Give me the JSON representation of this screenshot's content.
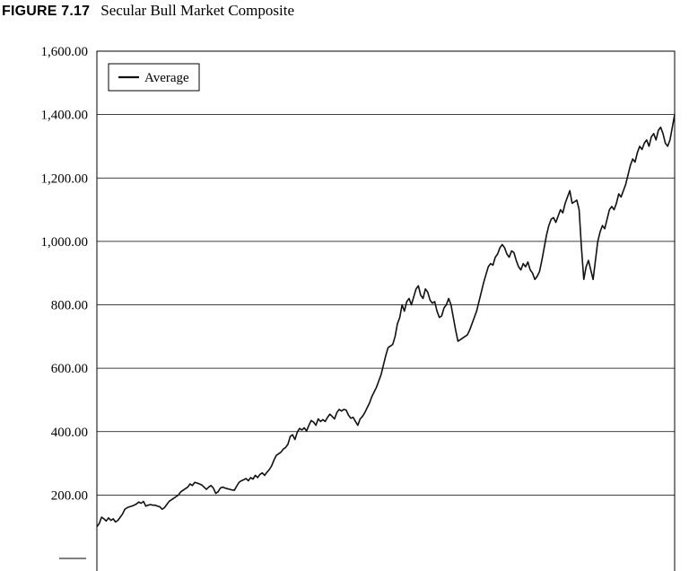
{
  "figure": {
    "label": "FIGURE 7.17",
    "caption": "Secular Bull Market Composite"
  },
  "chart_data": {
    "type": "line",
    "title": "Secular Bull Market Composite",
    "xlabel": "",
    "ylabel": "",
    "ylim": [
      0,
      1600
    ],
    "yticks": [
      200,
      400,
      600,
      800,
      1000,
      1200,
      1400,
      1600
    ],
    "ytick_labels": [
      "200.00",
      "400.00",
      "600.00",
      "800.00",
      "1,000.00",
      "1,200.00",
      "1,400.00",
      "1,600.00"
    ],
    "grid": "horizontal",
    "legend_position": "top-left",
    "series": [
      {
        "name": "Average",
        "color": "#111111",
        "values": [
          100,
          110,
          130,
          125,
          118,
          128,
          120,
          125,
          115,
          120,
          130,
          140,
          155,
          160,
          163,
          165,
          168,
          172,
          178,
          174,
          180,
          165,
          168,
          170,
          168,
          168,
          165,
          163,
          155,
          160,
          170,
          180,
          185,
          190,
          195,
          200,
          210,
          215,
          220,
          225,
          235,
          230,
          240,
          238,
          235,
          232,
          225,
          218,
          225,
          230,
          222,
          205,
          210,
          222,
          225,
          222,
          220,
          218,
          216,
          215,
          228,
          240,
          245,
          248,
          252,
          245,
          255,
          250,
          262,
          255,
          265,
          270,
          262,
          272,
          280,
          292,
          310,
          325,
          330,
          335,
          345,
          350,
          360,
          385,
          390,
          375,
          398,
          410,
          405,
          412,
          402,
          420,
          435,
          430,
          420,
          440,
          432,
          438,
          432,
          445,
          455,
          448,
          440,
          460,
          470,
          465,
          470,
          468,
          452,
          442,
          445,
          432,
          420,
          440,
          448,
          460,
          475,
          490,
          510,
          525,
          540,
          560,
          580,
          610,
          640,
          665,
          670,
          675,
          700,
          740,
          760,
          800,
          780,
          810,
          820,
          800,
          825,
          850,
          860,
          830,
          820,
          850,
          840,
          815,
          805,
          810,
          780,
          760,
          765,
          790,
          800,
          820,
          800,
          760,
          720,
          685,
          690,
          695,
          700,
          705,
          720,
          740,
          760,
          780,
          810,
          840,
          870,
          895,
          920,
          930,
          925,
          950,
          960,
          980,
          990,
          980,
          960,
          950,
          970,
          965,
          940,
          920,
          910,
          930,
          920,
          935,
          910,
          900,
          880,
          890,
          905,
          940,
          980,
          1020,
          1050,
          1070,
          1075,
          1060,
          1080,
          1100,
          1090,
          1120,
          1140,
          1160,
          1120,
          1125,
          1130,
          1100,
          980,
          880,
          920,
          940,
          910,
          880,
          940,
          1000,
          1030,
          1050,
          1040,
          1070,
          1100,
          1110,
          1100,
          1120,
          1150,
          1140,
          1160,
          1180,
          1210,
          1240,
          1260,
          1250,
          1280,
          1300,
          1290,
          1310,
          1320,
          1300,
          1330,
          1340,
          1320,
          1350,
          1360,
          1340,
          1310,
          1300,
          1320,
          1360,
          1400
        ]
      }
    ]
  }
}
